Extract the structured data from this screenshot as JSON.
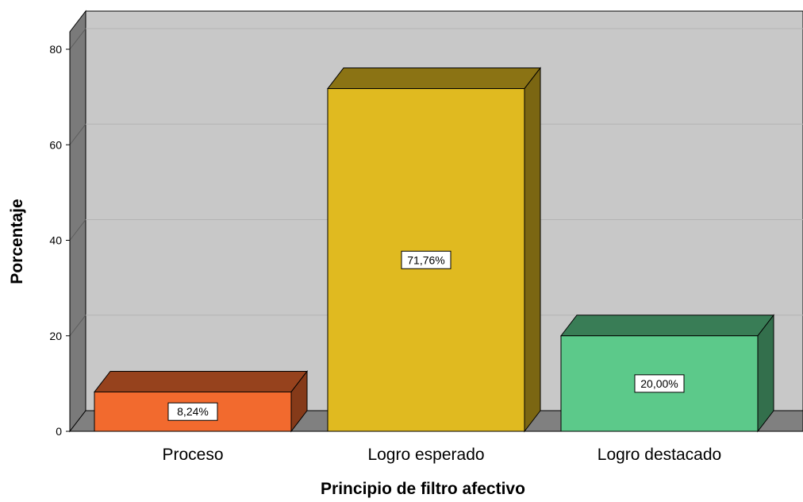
{
  "chart_data": {
    "type": "bar",
    "categories": [
      "Proceso",
      "Logro esperado",
      "Logro destacado"
    ],
    "values": [
      8.24,
      71.76,
      20.0
    ],
    "data_labels": [
      "8,24%",
      "71,76%",
      "20,00%"
    ],
    "colors": [
      "#F26A2E",
      "#E0BA20",
      "#5CC98A"
    ],
    "title": "",
    "xlabel": "Principio de filtro afectivo",
    "ylabel": "Porcentaje",
    "ylim": [
      0,
      80
    ],
    "yticks": [
      "0",
      "20",
      "40",
      "60",
      "80"
    ],
    "grid": true,
    "style": "3d",
    "plot_background": "#C8C8C8",
    "floor_color": "#808080"
  }
}
